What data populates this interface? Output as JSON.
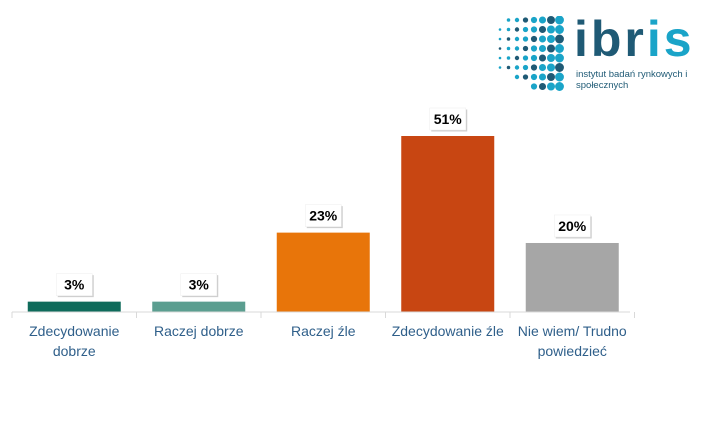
{
  "logo": {
    "name_main": "ibr",
    "name_accent": "is",
    "tagline": "instytut badań rynkowych i społecznych",
    "color_main": "#1f5a75",
    "color_accent": "#1aa4c8"
  },
  "chart_data": {
    "type": "bar",
    "categories": [
      "Zdecydowanie dobrze",
      "Raczej dobrze",
      "Raczej źle",
      "Zdecydowanie źle",
      "Nie wiem/ Trudno powiedzieć"
    ],
    "category_lines": [
      [
        "Zdecydowanie",
        "dobrze"
      ],
      [
        "Raczej dobrze"
      ],
      [
        "Raczej źle"
      ],
      [
        "Zdecydowanie źle"
      ],
      [
        "Nie wiem/ Trudno",
        "powiedzieć"
      ]
    ],
    "values": [
      3,
      3,
      23,
      51,
      20
    ],
    "value_labels": [
      "3%",
      "3%",
      "23%",
      "51%",
      "20%"
    ],
    "colors": [
      "#0f6b5b",
      "#5b9e90",
      "#e8750a",
      "#c84612",
      "#a6a6a6"
    ],
    "ylim": [
      0,
      51
    ],
    "grid": false,
    "legend": "none",
    "title": "",
    "xlabel": "",
    "ylabel": ""
  }
}
